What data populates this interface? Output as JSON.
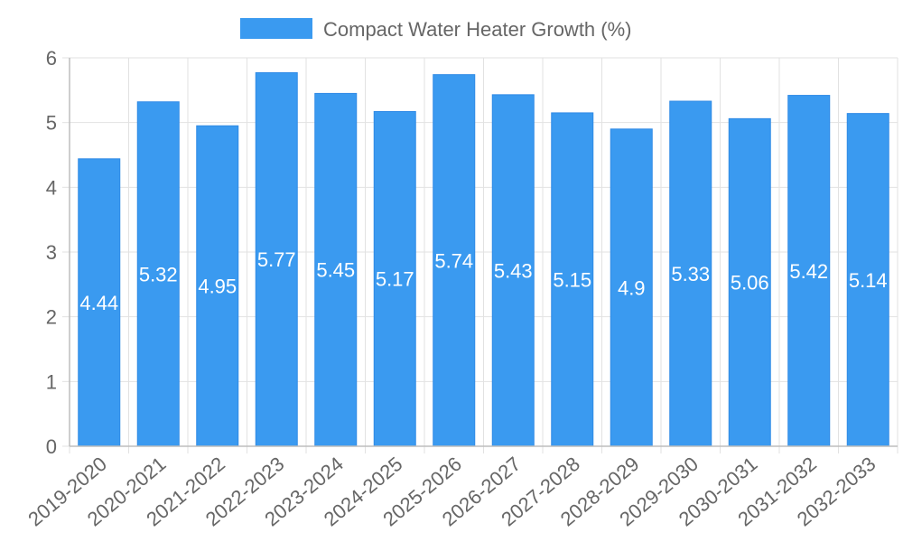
{
  "chart_data": {
    "type": "bar",
    "categories": [
      "2019-2020",
      "2020-2021",
      "2021-2022",
      "2022-2023",
      "2023-2024",
      "2024-2025",
      "2025-2026",
      "2026-2027",
      "2027-2028",
      "2028-2029",
      "2029-2030",
      "2030-2031",
      "2031-2032",
      "2032-2033"
    ],
    "series": [
      {
        "name": "Compact Water Heater Growth (%)",
        "values": [
          4.44,
          5.32,
          4.95,
          5.77,
          5.45,
          5.17,
          5.74,
          5.43,
          5.15,
          4.9,
          5.33,
          5.06,
          5.42,
          5.14
        ],
        "labels": [
          "4.44",
          "5.32",
          "4.95",
          "5.77",
          "5.45",
          "5.17",
          "5.74",
          "5.43",
          "5.15",
          "4.9",
          "5.33",
          "5.06",
          "5.42",
          "5.14"
        ]
      }
    ],
    "ylim": [
      0,
      6
    ],
    "yticks": [
      "0",
      "1",
      "2",
      "3",
      "4",
      "5",
      "6"
    ],
    "legend_position": "top",
    "grid": true,
    "colors": {
      "bar": "#3a9af0",
      "bar_border": "#2f8ae6",
      "grid": "#e2e2e2",
      "axis": "#bdbdbd",
      "text": "#666666",
      "data_label": "#ffffff"
    }
  }
}
